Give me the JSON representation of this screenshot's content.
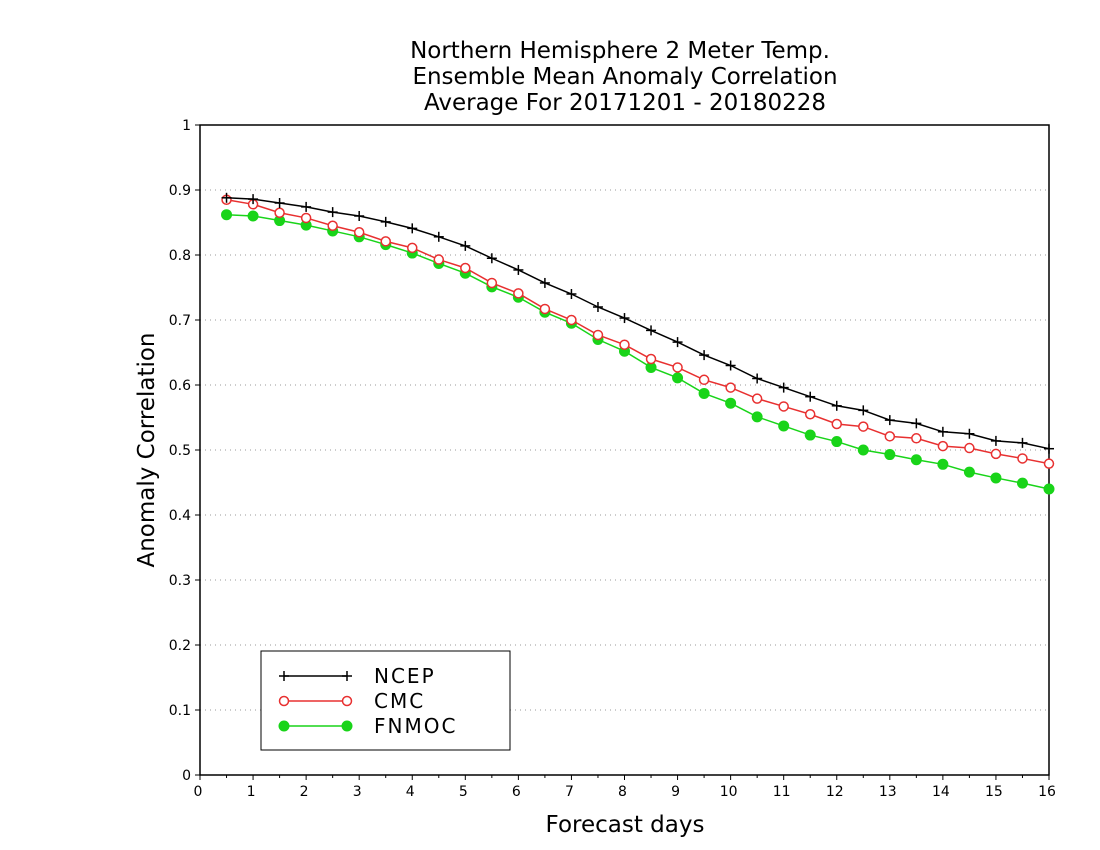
{
  "chart_data": {
    "type": "line",
    "title": [
      "Northern Hemisphere 2 Meter Temp.",
      "Ensemble Mean Anomaly Correlation",
      "Average For 20171201 - 20180228"
    ],
    "xlabel": "Forecast days",
    "ylabel": "Anomaly Correlation",
    "xlim": [
      0,
      16
    ],
    "ylim": [
      0,
      1
    ],
    "xticks": [
      "0",
      "1",
      "2",
      "3",
      "4",
      "5",
      "6",
      "7",
      "8",
      "9",
      "10",
      "11",
      "12",
      "13",
      "14",
      "15",
      "16"
    ],
    "yticks": [
      "0",
      "0.1",
      "0.2",
      "0.3",
      "0.4",
      "0.5",
      "0.6",
      "0.7",
      "0.8",
      "0.9",
      "1"
    ],
    "grid": "horizontal dotted",
    "legend_position": "bottom-left",
    "x": [
      0.5,
      1,
      1.5,
      2,
      2.5,
      3,
      3.5,
      4,
      4.5,
      5,
      5.5,
      6,
      6.5,
      7,
      7.5,
      8,
      8.5,
      9,
      9.5,
      10,
      10.5,
      11,
      11.5,
      12,
      12.5,
      13,
      13.5,
      14,
      14.5,
      15,
      15.5,
      16
    ],
    "series": [
      {
        "name": "NCEP",
        "color": "#000000",
        "marker": "plus",
        "values": [
          0.888,
          0.886,
          0.88,
          0.874,
          0.866,
          0.86,
          0.851,
          0.841,
          0.828,
          0.814,
          0.795,
          0.777,
          0.757,
          0.74,
          0.72,
          0.703,
          0.684,
          0.666,
          0.646,
          0.63,
          0.61,
          0.596,
          0.582,
          0.568,
          0.561,
          0.546,
          0.541,
          0.528,
          0.525,
          0.514,
          0.511,
          0.502
        ]
      },
      {
        "name": "CMC",
        "color": "#e83030",
        "marker": "open-circle",
        "values": [
          0.885,
          0.878,
          0.865,
          0.857,
          0.845,
          0.835,
          0.821,
          0.811,
          0.793,
          0.78,
          0.757,
          0.741,
          0.717,
          0.7,
          0.677,
          0.662,
          0.64,
          0.627,
          0.608,
          0.596,
          0.579,
          0.567,
          0.555,
          0.54,
          0.536,
          0.521,
          0.518,
          0.506,
          0.503,
          0.494,
          0.487,
          0.479
        ]
      },
      {
        "name": "FNMOC",
        "color": "#19d419",
        "marker": "filled-circle",
        "values": [
          0.862,
          0.86,
          0.853,
          0.846,
          0.837,
          0.828,
          0.816,
          0.803,
          0.787,
          0.772,
          0.751,
          0.735,
          0.712,
          0.695,
          0.67,
          0.652,
          0.627,
          0.611,
          0.587,
          0.572,
          0.551,
          0.537,
          0.523,
          0.513,
          0.5,
          0.493,
          0.485,
          0.478,
          0.466,
          0.457,
          0.449,
          0.44
        ]
      }
    ]
  }
}
